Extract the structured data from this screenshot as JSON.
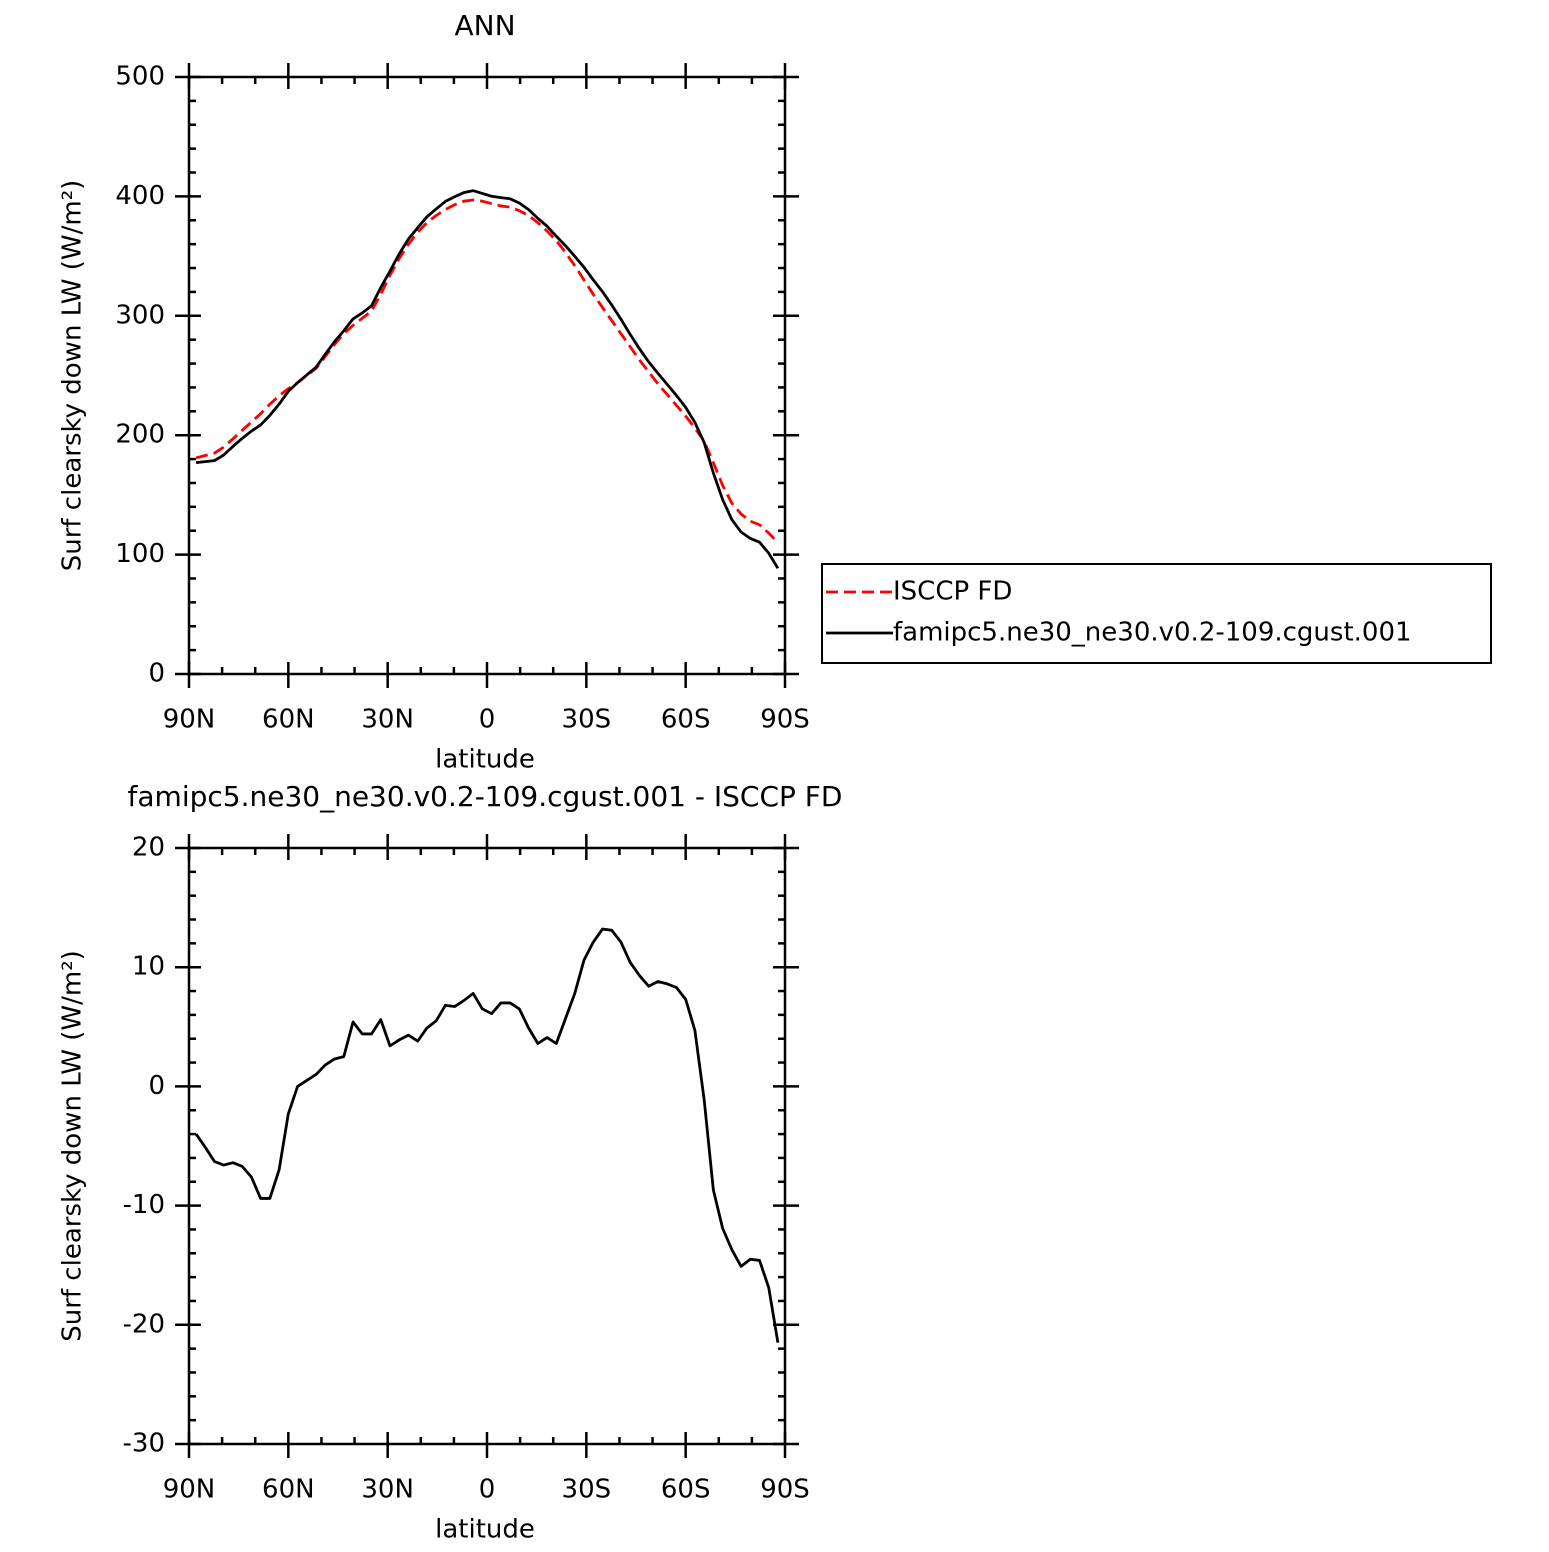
{
  "chart_data": [
    {
      "type": "line",
      "title": "ANN",
      "ylabel": "Surf clearsky down LW (W/m²)",
      "xlabel": "latitude",
      "x": [
        87.86,
        85.1,
        82.31,
        79.53,
        76.74,
        73.95,
        71.16,
        68.37,
        65.58,
        62.79,
        60.0,
        57.21,
        54.42,
        51.63,
        48.84,
        46.05,
        43.25,
        40.46,
        37.67,
        34.88,
        32.09,
        29.3,
        26.51,
        23.72,
        20.93,
        18.14,
        15.35,
        12.56,
        9.77,
        6.98,
        4.19,
        1.4,
        -1.4,
        -4.19,
        -6.98,
        -9.77,
        -12.56,
        -15.35,
        -18.14,
        -20.93,
        -23.72,
        -26.51,
        -29.3,
        -32.09,
        -34.88,
        -37.67,
        -40.46,
        -43.25,
        -46.05,
        -48.84,
        -51.63,
        -54.42,
        -57.21,
        -60.0,
        -62.79,
        -65.58,
        -68.37,
        -71.16,
        -73.95,
        -76.74,
        -79.53,
        -82.31,
        -85.1,
        -87.86
      ],
      "series": [
        {
          "name": "ISCCP FD",
          "color": "#ff0000",
          "dash": "dashed",
          "values": [
            181,
            183,
            185,
            190,
            197,
            204,
            211,
            218,
            226,
            233,
            239,
            244,
            250,
            256,
            266,
            276,
            285,
            292,
            298,
            304,
            318,
            334,
            348,
            360,
            370,
            378,
            384,
            389,
            393,
            396,
            397,
            396,
            394,
            392,
            391,
            388,
            384,
            378,
            371,
            363,
            353,
            342,
            330,
            318,
            307,
            296,
            285,
            274,
            263,
            253,
            243,
            234,
            225,
            216,
            206,
            195,
            177,
            158,
            143,
            134,
            128,
            125,
            118,
            110
          ]
        },
        {
          "name": "famipc5.ne30_ne30.v0.2-109.cgust.001",
          "color": "#000000",
          "dash": "solid",
          "values": [
            177.0,
            177.9,
            178.7,
            183.4,
            190.6,
            197.3,
            203.4,
            208.6,
            216.6,
            226.0,
            236.7,
            244.0,
            250.5,
            257.0,
            267.8,
            278.3,
            287.5,
            297.4,
            302.4,
            308.4,
            323.6,
            337.4,
            351.9,
            364.3,
            373.8,
            382.9,
            389.5,
            395.8,
            399.7,
            403.2,
            404.8,
            402.5,
            400.1,
            399.0,
            398.0,
            394.5,
            388.9,
            381.6,
            375.1,
            366.6,
            358.7,
            349.8,
            340.6,
            330.1,
            320.2,
            309.1,
            297.1,
            284.4,
            272.3,
            261.4,
            251.8,
            242.6,
            233.3,
            223.3,
            210.7,
            193.9,
            168.3,
            146.1,
            129.3,
            118.9,
            113.5,
            110.4,
            101.1,
            88.5
          ]
        }
      ],
      "xlim": [
        90,
        -90
      ],
      "ylim": [
        0,
        500
      ],
      "xticks": [
        {
          "value": 90,
          "label": "90N"
        },
        {
          "value": 60,
          "label": "60N"
        },
        {
          "value": 30,
          "label": "30N"
        },
        0,
        {
          "value": -30,
          "label": "30S"
        },
        {
          "value": -60,
          "label": "60S"
        },
        {
          "value": -90,
          "label": "90S"
        }
      ],
      "yticks": [
        0,
        100,
        200,
        300,
        400,
        500
      ],
      "legend": "right"
    },
    {
      "type": "line",
      "title": "famipc5.ne30_ne30.v0.2-109.cgust.001 - ISCCP FD",
      "ylabel": "Surf clearsky down LW (W/m²)",
      "xlabel": "latitude",
      "x": [
        87.86,
        85.1,
        82.31,
        79.53,
        76.74,
        73.95,
        71.16,
        68.37,
        65.58,
        62.79,
        60.0,
        57.21,
        54.42,
        51.63,
        48.84,
        46.05,
        43.25,
        40.46,
        37.67,
        34.88,
        32.09,
        29.3,
        26.51,
        23.72,
        20.93,
        18.14,
        15.35,
        12.56,
        9.77,
        6.98,
        4.19,
        1.4,
        -1.4,
        -4.19,
        -6.98,
        -9.77,
        -12.56,
        -15.35,
        -18.14,
        -20.93,
        -23.72,
        -26.51,
        -29.3,
        -32.09,
        -34.88,
        -37.67,
        -40.46,
        -43.25,
        -46.05,
        -48.84,
        -51.63,
        -54.42,
        -57.21,
        -60.0,
        -62.79,
        -65.58,
        -68.37,
        -71.16,
        -73.95,
        -76.74,
        -79.53,
        -82.31,
        -85.1,
        -87.86
      ],
      "series": [
        {
          "color": "#000000",
          "dash": "solid",
          "values": [
            -4.0,
            -5.1,
            -6.3,
            -6.6,
            -6.4,
            -6.7,
            -7.6,
            -9.4,
            -9.4,
            -7.0,
            -2.3,
            0.0,
            0.5,
            1.0,
            1.8,
            2.3,
            2.5,
            5.4,
            4.4,
            4.4,
            5.6,
            3.4,
            3.9,
            4.3,
            3.8,
            4.9,
            5.5,
            6.8,
            6.7,
            7.2,
            7.8,
            6.5,
            6.1,
            7.0,
            7.0,
            6.5,
            4.9,
            3.6,
            4.1,
            3.6,
            5.7,
            7.8,
            10.6,
            12.1,
            13.2,
            13.1,
            12.1,
            10.4,
            9.3,
            8.4,
            8.8,
            8.6,
            8.3,
            7.3,
            4.7,
            -1.1,
            -8.7,
            -11.9,
            -13.7,
            -15.1,
            -14.5,
            -14.6,
            -16.9,
            -21.5
          ]
        }
      ],
      "xlim": [
        90,
        -90
      ],
      "ylim": [
        -30,
        20
      ],
      "xticks": [
        {
          "value": 90,
          "label": "90N"
        },
        {
          "value": 60,
          "label": "60N"
        },
        {
          "value": 30,
          "label": "30N"
        },
        0,
        {
          "value": -30,
          "label": "30S"
        },
        {
          "value": -60,
          "label": "60S"
        },
        {
          "value": -90,
          "label": "90S"
        }
      ],
      "yticks": [
        -30,
        -20,
        -10,
        0,
        10,
        20
      ]
    }
  ]
}
